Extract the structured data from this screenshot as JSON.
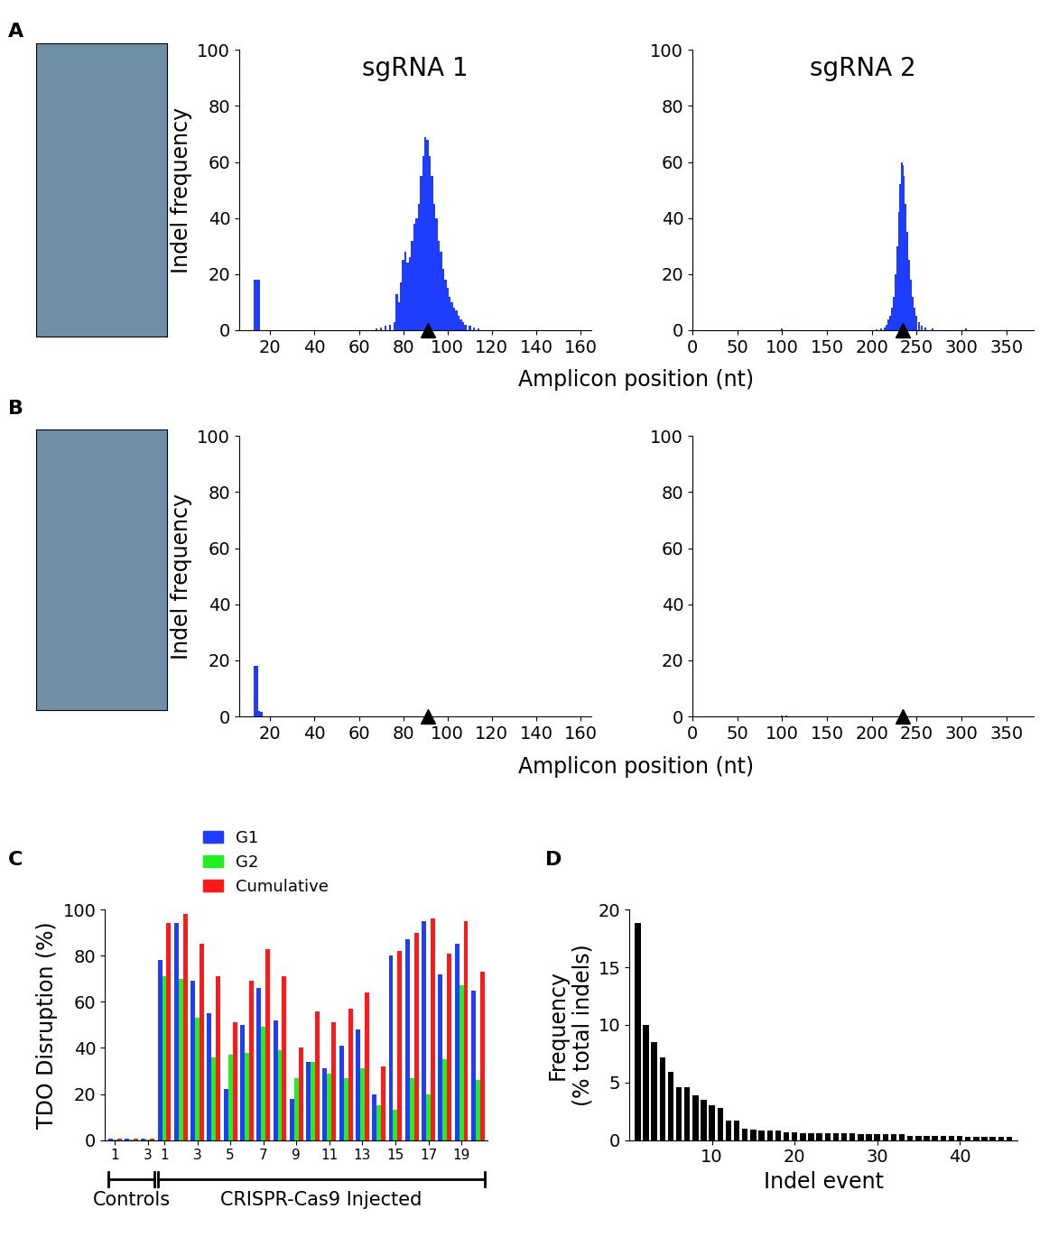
{
  "chart_data": [
    {
      "panel": "A",
      "type": "bar",
      "title": "sgRNA 1",
      "ylabel": "Indel frequency",
      "xlabel": "Amplicon position (nt)",
      "x": [
        13,
        14,
        15,
        68,
        70,
        72,
        74,
        76,
        77,
        78,
        79,
        80,
        81,
        82,
        83,
        84,
        85,
        86,
        87,
        88,
        89,
        90,
        91,
        92,
        93,
        94,
        95,
        96,
        97,
        98,
        99,
        100,
        101,
        102,
        103,
        104,
        105,
        106,
        107,
        108,
        110,
        112,
        114
      ],
      "values": [
        18,
        18,
        18,
        0.5,
        1,
        1.5,
        2,
        3,
        13,
        10,
        17,
        25,
        28,
        24,
        26,
        32,
        38,
        40,
        45,
        55,
        62,
        69,
        68,
        62,
        55,
        45,
        40,
        32,
        28,
        22,
        18,
        15,
        12,
        10,
        8,
        7,
        5,
        4,
        3,
        2,
        1.5,
        1,
        0.5
      ],
      "color": "#1f3dff",
      "cut_site": 91,
      "xlim": [
        6,
        165
      ],
      "xticks": [
        20,
        40,
        60,
        80,
        100,
        120,
        140,
        160
      ],
      "ylim": [
        0,
        100
      ],
      "yticks": [
        0,
        20,
        40,
        60,
        80,
        100
      ]
    },
    {
      "type": "bar",
      "title": "sgRNA 2",
      "x": [
        100,
        205,
        210,
        214,
        216,
        218,
        220,
        222,
        224,
        226,
        228,
        230,
        232,
        234,
        235,
        236,
        238,
        240,
        242,
        244,
        246,
        248,
        250,
        253,
        256,
        260,
        268,
        305
      ],
      "values": [
        0.5,
        0.3,
        0.5,
        1,
        2,
        4,
        5,
        8,
        12,
        20,
        30,
        42,
        52,
        60,
        59,
        55,
        45,
        35,
        25,
        18,
        12,
        8,
        5,
        3,
        1.5,
        1,
        0.5,
        0.5
      ],
      "color": "#1f3dff",
      "cut_site": 235,
      "xlim": [
        0,
        380
      ],
      "xticks": [
        0,
        50,
        100,
        150,
        200,
        250,
        300,
        350
      ],
      "ylim": [
        0,
        100
      ],
      "yticks": [
        0,
        20,
        40,
        60,
        80,
        100
      ]
    },
    {
      "panel": "B",
      "type": "bar",
      "ylabel": "Indel frequency",
      "xlabel": "Amplicon position (nt)",
      "x": [
        13,
        14,
        15,
        16
      ],
      "values": [
        18,
        18,
        2,
        1.5
      ],
      "color": "#1f3dff",
      "cut_site": 91,
      "xlim": [
        6,
        165
      ],
      "xticks": [
        20,
        40,
        60,
        80,
        100,
        120,
        140,
        160
      ],
      "ylim": [
        0,
        100
      ],
      "yticks": [
        0,
        20,
        40,
        60,
        80,
        100
      ]
    },
    {
      "type": "bar",
      "x": [
        100,
        105
      ],
      "values": [
        0.5,
        0.4
      ],
      "color": "#1f3dff",
      "cut_site": 235,
      "xlim": [
        0,
        380
      ],
      "xticks": [
        0,
        50,
        100,
        150,
        200,
        250,
        300,
        350
      ],
      "ylim": [
        0,
        100
      ],
      "yticks": [
        0,
        20,
        40,
        60,
        80,
        100
      ]
    },
    {
      "panel": "C",
      "type": "bar",
      "ylabel": "TDO Disruption (%)",
      "categories": [
        "1",
        null,
        "3",
        "1",
        null,
        "3",
        null,
        "5",
        null,
        "7",
        null,
        "9",
        null,
        "11",
        null,
        "13",
        null,
        "15",
        null,
        "17",
        null,
        "19",
        null
      ],
      "groups": [
        {
          "label": "Controls",
          "count": 3
        },
        {
          "label": "CRISPR-Cas9 Injected",
          "count": 20
        }
      ],
      "series": [
        {
          "name": "G1",
          "color": "#1f3dff",
          "values": [
            0.5,
            0.5,
            0.5,
            78,
            94,
            69,
            55,
            22,
            50,
            66,
            52,
            18,
            34,
            31,
            41,
            48,
            20,
            80,
            87,
            95,
            72,
            85,
            65
          ]
        },
        {
          "name": "G2",
          "color": "#22ee22",
          "values": [
            0.3,
            0.3,
            0.3,
            71,
            70,
            53,
            36,
            37,
            38,
            49,
            39,
            27,
            34,
            29,
            27,
            31,
            15,
            13,
            27,
            20,
            35,
            67,
            26
          ]
        },
        {
          "name": "Cumulative",
          "color": "#ff1a1a",
          "values": [
            0.5,
            0.5,
            0.5,
            94,
            98,
            85,
            71,
            51,
            69,
            83,
            71,
            40,
            56,
            51,
            57,
            64,
            32,
            82,
            90,
            96,
            81,
            95,
            73
          ]
        }
      ],
      "legend": "lower center",
      "ylim": [
        0,
        100
      ],
      "yticks": [
        0,
        20,
        40,
        60,
        80,
        100
      ]
    },
    {
      "panel": "D",
      "type": "bar",
      "xlabel": "Indel event",
      "ylabel": "Frequency\n(% total indels)",
      "x": [
        1,
        2,
        3,
        4,
        5,
        6,
        7,
        8,
        9,
        10,
        11,
        12,
        13,
        14,
        15,
        16,
        17,
        18,
        19,
        20,
        21,
        22,
        23,
        24,
        25,
        26,
        27,
        28,
        29,
        30,
        31,
        32,
        33,
        34,
        35,
        36,
        37,
        38,
        39,
        40,
        41,
        42,
        43,
        44,
        45,
        46
      ],
      "values": [
        18.8,
        10.0,
        8.5,
        7.2,
        5.9,
        4.6,
        4.6,
        3.9,
        3.5,
        3.0,
        2.8,
        1.7,
        1.7,
        1.0,
        0.9,
        0.8,
        0.8,
        0.8,
        0.7,
        0.7,
        0.6,
        0.6,
        0.6,
        0.6,
        0.6,
        0.6,
        0.6,
        0.5,
        0.5,
        0.5,
        0.5,
        0.5,
        0.5,
        0.4,
        0.4,
        0.4,
        0.4,
        0.4,
        0.4,
        0.4,
        0.3,
        0.3,
        0.3,
        0.3,
        0.3,
        0.3
      ],
      "color": "#000000",
      "xlim": [
        0,
        47
      ],
      "xticks": [
        10,
        20,
        30,
        40
      ],
      "ylim": [
        0,
        20
      ],
      "yticks": [
        0,
        5,
        10,
        15,
        20
      ]
    }
  ]
}
